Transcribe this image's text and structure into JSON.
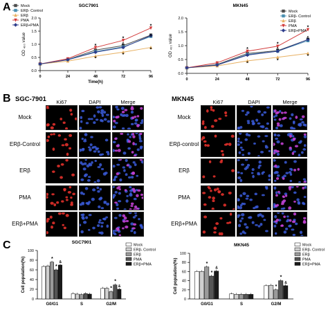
{
  "panels": {
    "a": "A",
    "b": "B",
    "c": "C"
  },
  "panel_a": {
    "charts": [
      {
        "id": "a1",
        "type": "line",
        "title": "SGC7901",
        "ylabel": "OD ₄₉₀ value",
        "xlabel": "Time(h)",
        "x": [
          0,
          24,
          48,
          72,
          96
        ],
        "ylim": [
          0.0,
          2.0
        ],
        "yticks": [
          "0.0",
          "0.5",
          "1.0",
          "1.5",
          "2.0"
        ],
        "legend": [
          "Mock",
          "ERβ- Control",
          "ERβ",
          "PMA",
          "ERβ+PMA"
        ],
        "series": [
          {
            "name": "Mock",
            "color": "#4c4c4c",
            "values": [
              0.25,
              0.42,
              0.78,
              0.95,
              1.35
            ]
          },
          {
            "name": "ERβ- Control",
            "color": "#4a8fb0",
            "values": [
              0.25,
              0.42,
              0.72,
              0.9,
              1.3
            ]
          },
          {
            "name": "ERβ",
            "color": "#e8b061",
            "values": [
              0.25,
              0.36,
              0.55,
              0.7,
              0.88
            ]
          },
          {
            "name": "PMA",
            "color": "#d23a3a",
            "values": [
              0.25,
              0.45,
              0.88,
              1.15,
              1.62
            ]
          },
          {
            "name": "ERβ+PMA",
            "color": "#2b3b8a",
            "values": [
              0.25,
              0.41,
              0.7,
              0.88,
              1.33
            ]
          }
        ],
        "annotations": [
          {
            "x": 48,
            "y": 0.95,
            "text": "*"
          },
          {
            "x": 48,
            "y": 0.46,
            "text": "*"
          },
          {
            "x": 72,
            "y": 1.22,
            "text": "*"
          },
          {
            "x": 72,
            "y": 1.02,
            "text": "&"
          },
          {
            "x": 72,
            "y": 0.6,
            "text": "*"
          },
          {
            "x": 96,
            "y": 1.7,
            "text": "*"
          },
          {
            "x": 96,
            "y": 1.36,
            "text": "&"
          },
          {
            "x": 96,
            "y": 0.8,
            "text": "*"
          }
        ]
      },
      {
        "id": "a2",
        "type": "line",
        "title": "MKN45",
        "ylabel": "OD ₄₉₀ value",
        "xlabel": "",
        "x": [
          0,
          24,
          48,
          72,
          96
        ],
        "ylim": [
          0.0,
          2.0
        ],
        "yticks": [
          "0.0",
          "0.5",
          "1.0",
          "1.5",
          "2.0"
        ],
        "legend": [
          "Mock",
          "ERβ- Control",
          "ERβ",
          "PMA",
          "ERβ+PMA"
        ],
        "series": [
          {
            "name": "Mock",
            "color": "#4c4c4c",
            "values": [
              0.2,
              0.32,
              0.72,
              0.82,
              1.22
            ]
          },
          {
            "name": "ERβ- Control",
            "color": "#4a8fb0",
            "values": [
              0.2,
              0.3,
              0.68,
              0.8,
              1.18
            ]
          },
          {
            "name": "ERβ",
            "color": "#e8b061",
            "values": [
              0.2,
              0.27,
              0.45,
              0.58,
              0.72
            ]
          },
          {
            "name": "PMA",
            "color": "#d23a3a",
            "values": [
              0.2,
              0.38,
              0.8,
              0.98,
              1.58
            ]
          },
          {
            "name": "ERβ+PMA",
            "color": "#2b3b8a",
            "values": [
              0.2,
              0.3,
              0.66,
              0.8,
              1.22
            ]
          }
        ],
        "annotations": [
          {
            "x": 48,
            "y": 0.88,
            "text": "*"
          },
          {
            "x": 48,
            "y": 0.36,
            "text": "*"
          },
          {
            "x": 72,
            "y": 1.06,
            "text": "*"
          },
          {
            "x": 72,
            "y": 0.9,
            "text": "&"
          },
          {
            "x": 72,
            "y": 0.46,
            "text": "*"
          },
          {
            "x": 96,
            "y": 1.66,
            "text": "*"
          },
          {
            "x": 96,
            "y": 1.3,
            "text": "&"
          },
          {
            "x": 96,
            "y": 0.62,
            "text": "*"
          }
        ]
      }
    ]
  },
  "panel_b": {
    "groups": [
      {
        "cell": "SGC-7901",
        "rows": [
          "Mock",
          "ERβ-Control",
          "ERβ",
          "PMA",
          "ERβ+PMA"
        ]
      },
      {
        "cell": "MKN45",
        "rows": [
          "Mock",
          "ERβ-control",
          "ERβ",
          "PMA",
          "ERβ+PMA"
        ]
      }
    ],
    "columns": [
      "Ki67",
      "DAPI",
      "Merge"
    ],
    "cell_density": [
      1.0,
      1.0,
      0.5,
      1.4,
      0.9
    ],
    "colors": {
      "ki67": "#e0302a",
      "dapi": "#3a5bd8",
      "merge": "#c040d0"
    }
  },
  "panel_c": {
    "charts": [
      {
        "id": "c1",
        "type": "bar",
        "title": "SGC7901",
        "ylabel": "Cell population(%)",
        "categories": [
          "G0/G1",
          "S",
          "G2/M"
        ],
        "ylim": [
          0,
          100
        ],
        "yticks": [
          "0",
          "20",
          "40",
          "60",
          "80",
          "100"
        ],
        "legend": [
          "Mock",
          "ERβ- Control",
          "ERβ",
          "PMA",
          "ERβ+PMA"
        ],
        "series": [
          {
            "name": "Mock",
            "color": "#ffffff",
            "values": [
              67,
              11,
              22
            ]
          },
          {
            "name": "ERβ- Control",
            "color": "#cfcfcf",
            "values": [
              68,
              10,
              22
            ]
          },
          {
            "name": "ERβ",
            "color": "#9a9a9a",
            "values": [
              76,
              9,
              15
            ]
          },
          {
            "name": "PMA",
            "color": "#555555",
            "values": [
              60,
              11,
              29
            ]
          },
          {
            "name": "ERβ+PMA",
            "color": "#1a1a1a",
            "values": [
              70,
              10,
              20
            ]
          }
        ],
        "annotations": [
          {
            "category": 0,
            "series": 2,
            "text": "*"
          },
          {
            "category": 0,
            "series": 3,
            "text": "*"
          },
          {
            "category": 0,
            "series": 4,
            "text": "&"
          },
          {
            "category": 2,
            "series": 2,
            "text": "*"
          },
          {
            "category": 2,
            "series": 3,
            "text": "*"
          },
          {
            "category": 2,
            "series": 4,
            "text": "&"
          }
        ]
      },
      {
        "id": "c2",
        "type": "bar",
        "title": "MKN45",
        "ylabel": "Cell population(%)",
        "categories": [
          "G0/G1",
          "S",
          "G2/M"
        ],
        "ylim": [
          0,
          100
        ],
        "yticks": [
          "0",
          "20",
          "40",
          "60",
          "80",
          "100"
        ],
        "legend": [
          "Mock",
          "ERβ- Control",
          "ERβ",
          "PMA",
          "ERβ+PMA"
        ],
        "series": [
          {
            "name": "Mock",
            "color": "#ffffff",
            "values": [
              60,
              11,
              29
            ]
          },
          {
            "name": "ERβ- Control",
            "color": "#cfcfcf",
            "values": [
              60,
              10,
              30
            ]
          },
          {
            "name": "ERβ",
            "color": "#9a9a9a",
            "values": [
              70,
              10,
              20
            ]
          },
          {
            "name": "PMA",
            "color": "#555555",
            "values": [
              50,
              10,
              40
            ]
          },
          {
            "name": "ERβ+PMA",
            "color": "#1a1a1a",
            "values": [
              61,
              10,
              29
            ]
          }
        ],
        "annotations": [
          {
            "category": 0,
            "series": 2,
            "text": "*"
          },
          {
            "category": 0,
            "series": 3,
            "text": "*"
          },
          {
            "category": 0,
            "series": 4,
            "text": "&"
          },
          {
            "category": 2,
            "series": 2,
            "text": "*"
          },
          {
            "category": 2,
            "series": 3,
            "text": "*"
          },
          {
            "category": 2,
            "series": 4,
            "text": "&"
          }
        ]
      }
    ]
  }
}
